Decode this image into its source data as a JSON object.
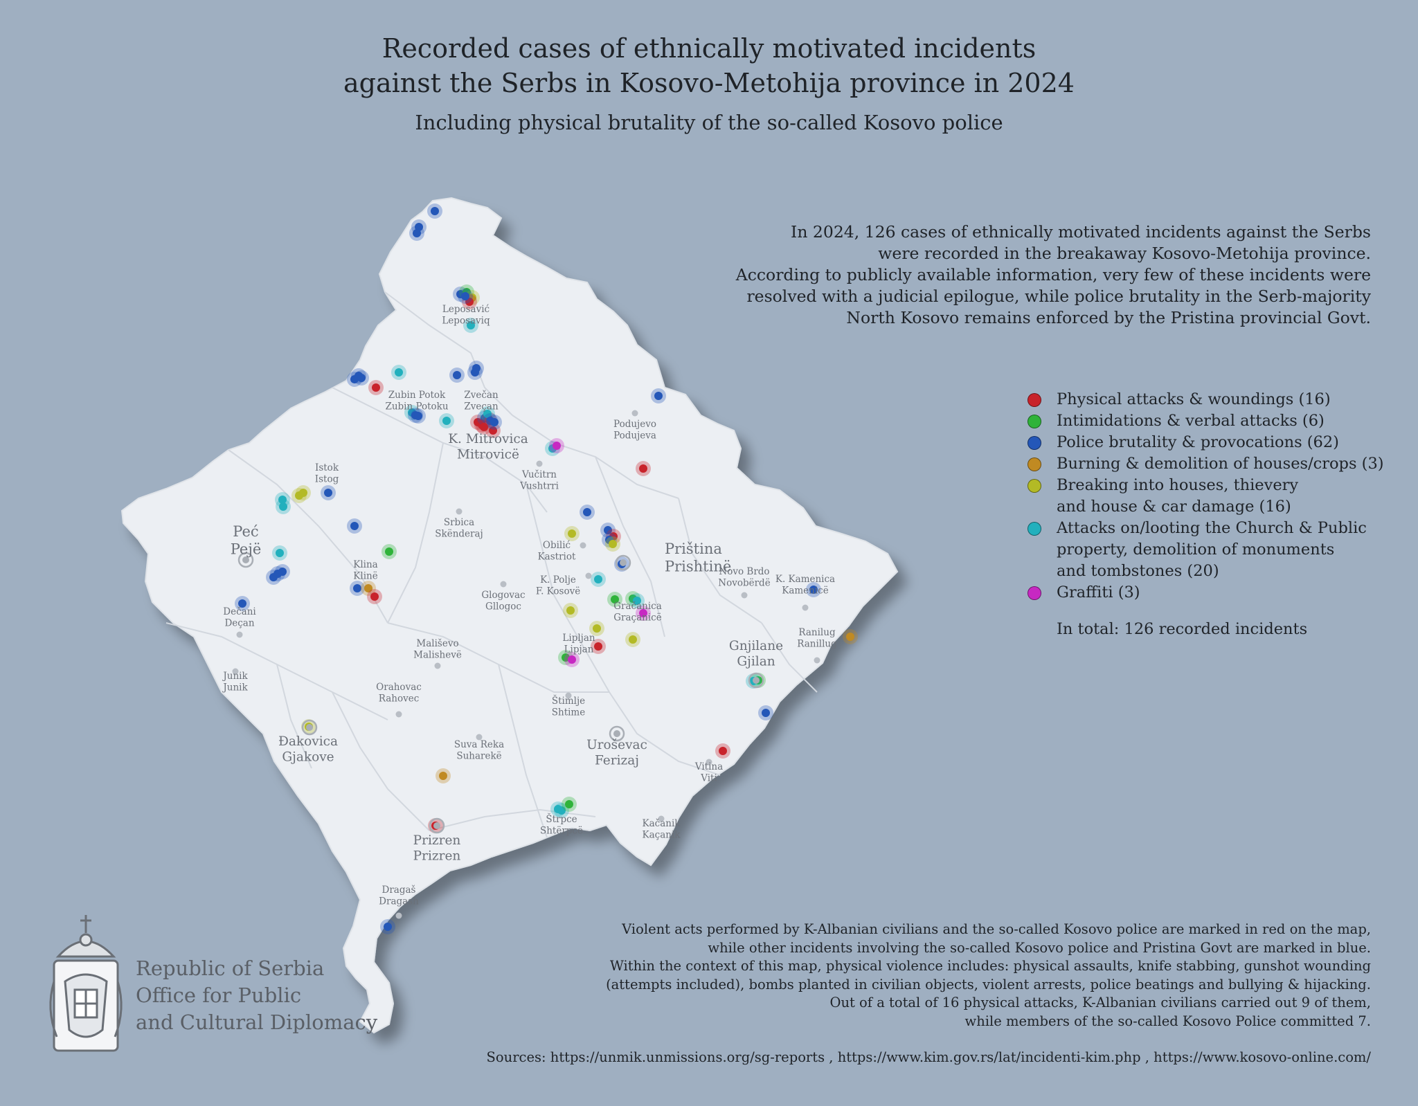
{
  "title_lines": [
    "Recorded cases of ethnically motivated incidents",
    "against the Serbs in Kosovo-Metohija province in 2024"
  ],
  "subtitle": "Including physical brutality of the so-called Kosovo police",
  "intro_lines": [
    "In 2024, 126 cases of ethnically motivated incidents against the Serbs",
    "were recorded in the breakaway Kosovo-Metohija province.",
    "According to publicly available information, very few of these incidents were",
    "resolved with a judicial epilogue, while police brutality in the Serb-majority",
    "North Kosovo remains enforced by the Pristina provincial Govt."
  ],
  "colors": {
    "background": "#9fafc1",
    "land": "#eceff3",
    "physical": "#c8232b",
    "intimidation": "#2fb33a",
    "police": "#2457b8",
    "burning": "#c08a22",
    "breaking": "#b3ba25",
    "church": "#22b0bd",
    "graffiti": "#c728c2"
  },
  "legend": {
    "items": [
      {
        "key": "physical",
        "lines": [
          "Physical attacks & woundings (16)"
        ]
      },
      {
        "key": "intimidation",
        "lines": [
          "Intimidations & verbal attacks (6)"
        ]
      },
      {
        "key": "police",
        "lines": [
          "Police brutality & provocations (62)"
        ]
      },
      {
        "key": "burning",
        "lines": [
          "Burning & demolition of houses/crops (3)"
        ]
      },
      {
        "key": "breaking",
        "lines": [
          "Breaking into houses, thievery",
          "and house & car damage (16)"
        ]
      },
      {
        "key": "church",
        "lines": [
          "Attacks on/looting the Church & Public",
          "property, demolition of monuments",
          "and tombstones (20)"
        ]
      },
      {
        "key": "graffiti",
        "lines": [
          "Graffiti (3)"
        ]
      }
    ],
    "total": "In total: 126 recorded incidents"
  },
  "places": [
    {
      "id": "leposavic",
      "lines": [
        "Leposavić",
        "Leposaviq"
      ],
      "size": "small"
    },
    {
      "id": "zubin",
      "lines": [
        "Zubin Potok",
        "Zubin Potoku"
      ],
      "size": "small"
    },
    {
      "id": "zvecan",
      "lines": [
        "Zvečan",
        "Zveçan"
      ],
      "size": "small"
    },
    {
      "id": "mitrovica",
      "lines": [
        "K. Mitrovica",
        "Mitrovicë"
      ],
      "size": "medium"
    },
    {
      "id": "podujevo",
      "lines": [
        "Podujevo",
        "Podujeva"
      ],
      "size": "small"
    },
    {
      "id": "vucitrn",
      "lines": [
        "Vučitrn",
        "Vushtrri"
      ],
      "size": "small"
    },
    {
      "id": "istok",
      "lines": [
        "Istok",
        "Istog"
      ],
      "size": "small"
    },
    {
      "id": "pec",
      "lines": [
        "Peć",
        "Pejë"
      ],
      "size": "large"
    },
    {
      "id": "srbica",
      "lines": [
        "Srbica",
        "Skënderaj"
      ],
      "size": "small"
    },
    {
      "id": "obilic",
      "lines": [
        "Obilić",
        "Kastriot"
      ],
      "size": "small"
    },
    {
      "id": "pristina",
      "lines": [
        "Priština",
        "Prishtinë"
      ],
      "size": "large"
    },
    {
      "id": "klina",
      "lines": [
        "Klina",
        "Klinë"
      ],
      "size": "small"
    },
    {
      "id": "kpolje",
      "lines": [
        "K. Polje",
        "F. Kosovë"
      ],
      "size": "small"
    },
    {
      "id": "glogovac",
      "lines": [
        "Glogovac",
        "Gllogoc"
      ],
      "size": "small"
    },
    {
      "id": "novobrdo",
      "lines": [
        "Novo Brdo",
        "Novobërdë"
      ],
      "size": "small"
    },
    {
      "id": "kamenica",
      "lines": [
        "K. Kamenica",
        "Kamenicë"
      ],
      "size": "small"
    },
    {
      "id": "decani",
      "lines": [
        "Dečani",
        "Deçan"
      ],
      "size": "small"
    },
    {
      "id": "gracanica",
      "lines": [
        "Gračanica",
        "Graçanicë"
      ],
      "size": "small"
    },
    {
      "id": "malisevo",
      "lines": [
        "Mališevo",
        "Malishevë"
      ],
      "size": "small"
    },
    {
      "id": "lipljan",
      "lines": [
        "Lipljan",
        "Lipjan"
      ],
      "size": "small"
    },
    {
      "id": "gnjilane",
      "lines": [
        "Gnjilane",
        "Gjilan"
      ],
      "size": "medium"
    },
    {
      "id": "ranilug",
      "lines": [
        "Ranilug",
        "Ranillug"
      ],
      "size": "small"
    },
    {
      "id": "junik",
      "lines": [
        "Junik",
        "Junik"
      ],
      "size": "small"
    },
    {
      "id": "orahovac",
      "lines": [
        "Orahovac",
        "Rahovec"
      ],
      "size": "small"
    },
    {
      "id": "stimlje",
      "lines": [
        "Štimlje",
        "Shtime"
      ],
      "size": "small"
    },
    {
      "id": "djakovica",
      "lines": [
        "Đakovica",
        "Gjakove"
      ],
      "size": "medium"
    },
    {
      "id": "suvareka",
      "lines": [
        "Suva Reka",
        "Suharekë"
      ],
      "size": "small"
    },
    {
      "id": "urosevac",
      "lines": [
        "Uroševac",
        "Ferizaj"
      ],
      "size": "medium"
    },
    {
      "id": "vitina",
      "lines": [
        "Vitina",
        "Viti"
      ],
      "size": "small"
    },
    {
      "id": "strpce",
      "lines": [
        "Štrpce",
        "Shtërpcë"
      ],
      "size": "small"
    },
    {
      "id": "kacanik",
      "lines": [
        "Kačanik",
        "Kaçanik"
      ],
      "size": "small"
    },
    {
      "id": "prizren",
      "lines": [
        "Prizren",
        "Prizren"
      ],
      "size": "medium"
    },
    {
      "id": "dragas",
      "lines": [
        "Dragaš",
        "Dragash"
      ],
      "size": "small"
    }
  ],
  "footnote_lines": [
    "Violent acts performed by K-Albanian civilians and the so-called Kosovo police are marked in red on the map,",
    "while other incidents involving the so-called Kosovo police and Pristina Govt are marked in blue.",
    "Within the context of this map, physical violence includes: physical assaults, knife stabbing, gunshot wounding",
    "(attempts included), bombs planted in civilian objects, violent arrests, police beatings and bullying & hijacking.",
    "Out of a total of 16 physical attacks, K-Albanian civilians carried out 9 of them,",
    "while members of the so-called Kosovo Police committed 7."
  ],
  "sources": "Sources: https://unmik.unmissions.org/sg-reports , https://www.kim.gov.rs/lat/incidenti-kim.php , https://www.kosovo-online.com/",
  "org_lines": [
    "Republic of Serbia",
    "Office for Public",
    "and Cultural Diplomacy"
  ]
}
